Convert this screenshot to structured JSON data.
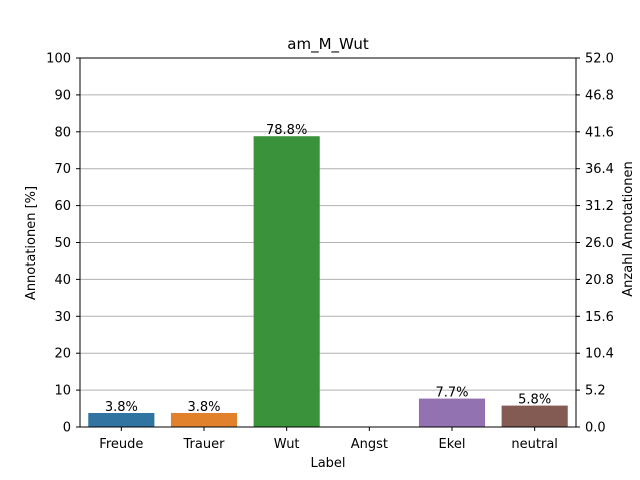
{
  "chart_data": {
    "type": "bar",
    "title": "am_M_Wut",
    "xlabel": "Label",
    "ylabel": "Annotationen [%]",
    "ylabel_right": "Anzahl Annotationen",
    "categories": [
      "Freude",
      "Trauer",
      "Wut",
      "Angst",
      "Ekel",
      "neutral"
    ],
    "values": [
      3.8,
      3.8,
      78.8,
      0,
      7.7,
      5.8
    ],
    "data_labels": [
      "3.8%",
      "3.8%",
      "78.8%",
      "",
      "7.7%",
      "5.8%"
    ],
    "colors": [
      "#3274a1",
      "#e1812c",
      "#3a923a",
      "#c03d3e",
      "#9372b2",
      "#845b53"
    ],
    "ylim": [
      0,
      100
    ],
    "y_ticks": [
      "0",
      "10",
      "20",
      "30",
      "40",
      "50",
      "60",
      "70",
      "80",
      "90",
      "100"
    ],
    "ylim_right": [
      0,
      52
    ],
    "y_ticks_right": [
      "0.0",
      "5.2",
      "10.4",
      "15.6",
      "20.8",
      "26.0",
      "31.2",
      "36.4",
      "41.6",
      "46.8",
      "52.0"
    ],
    "grid": "horizontal"
  }
}
